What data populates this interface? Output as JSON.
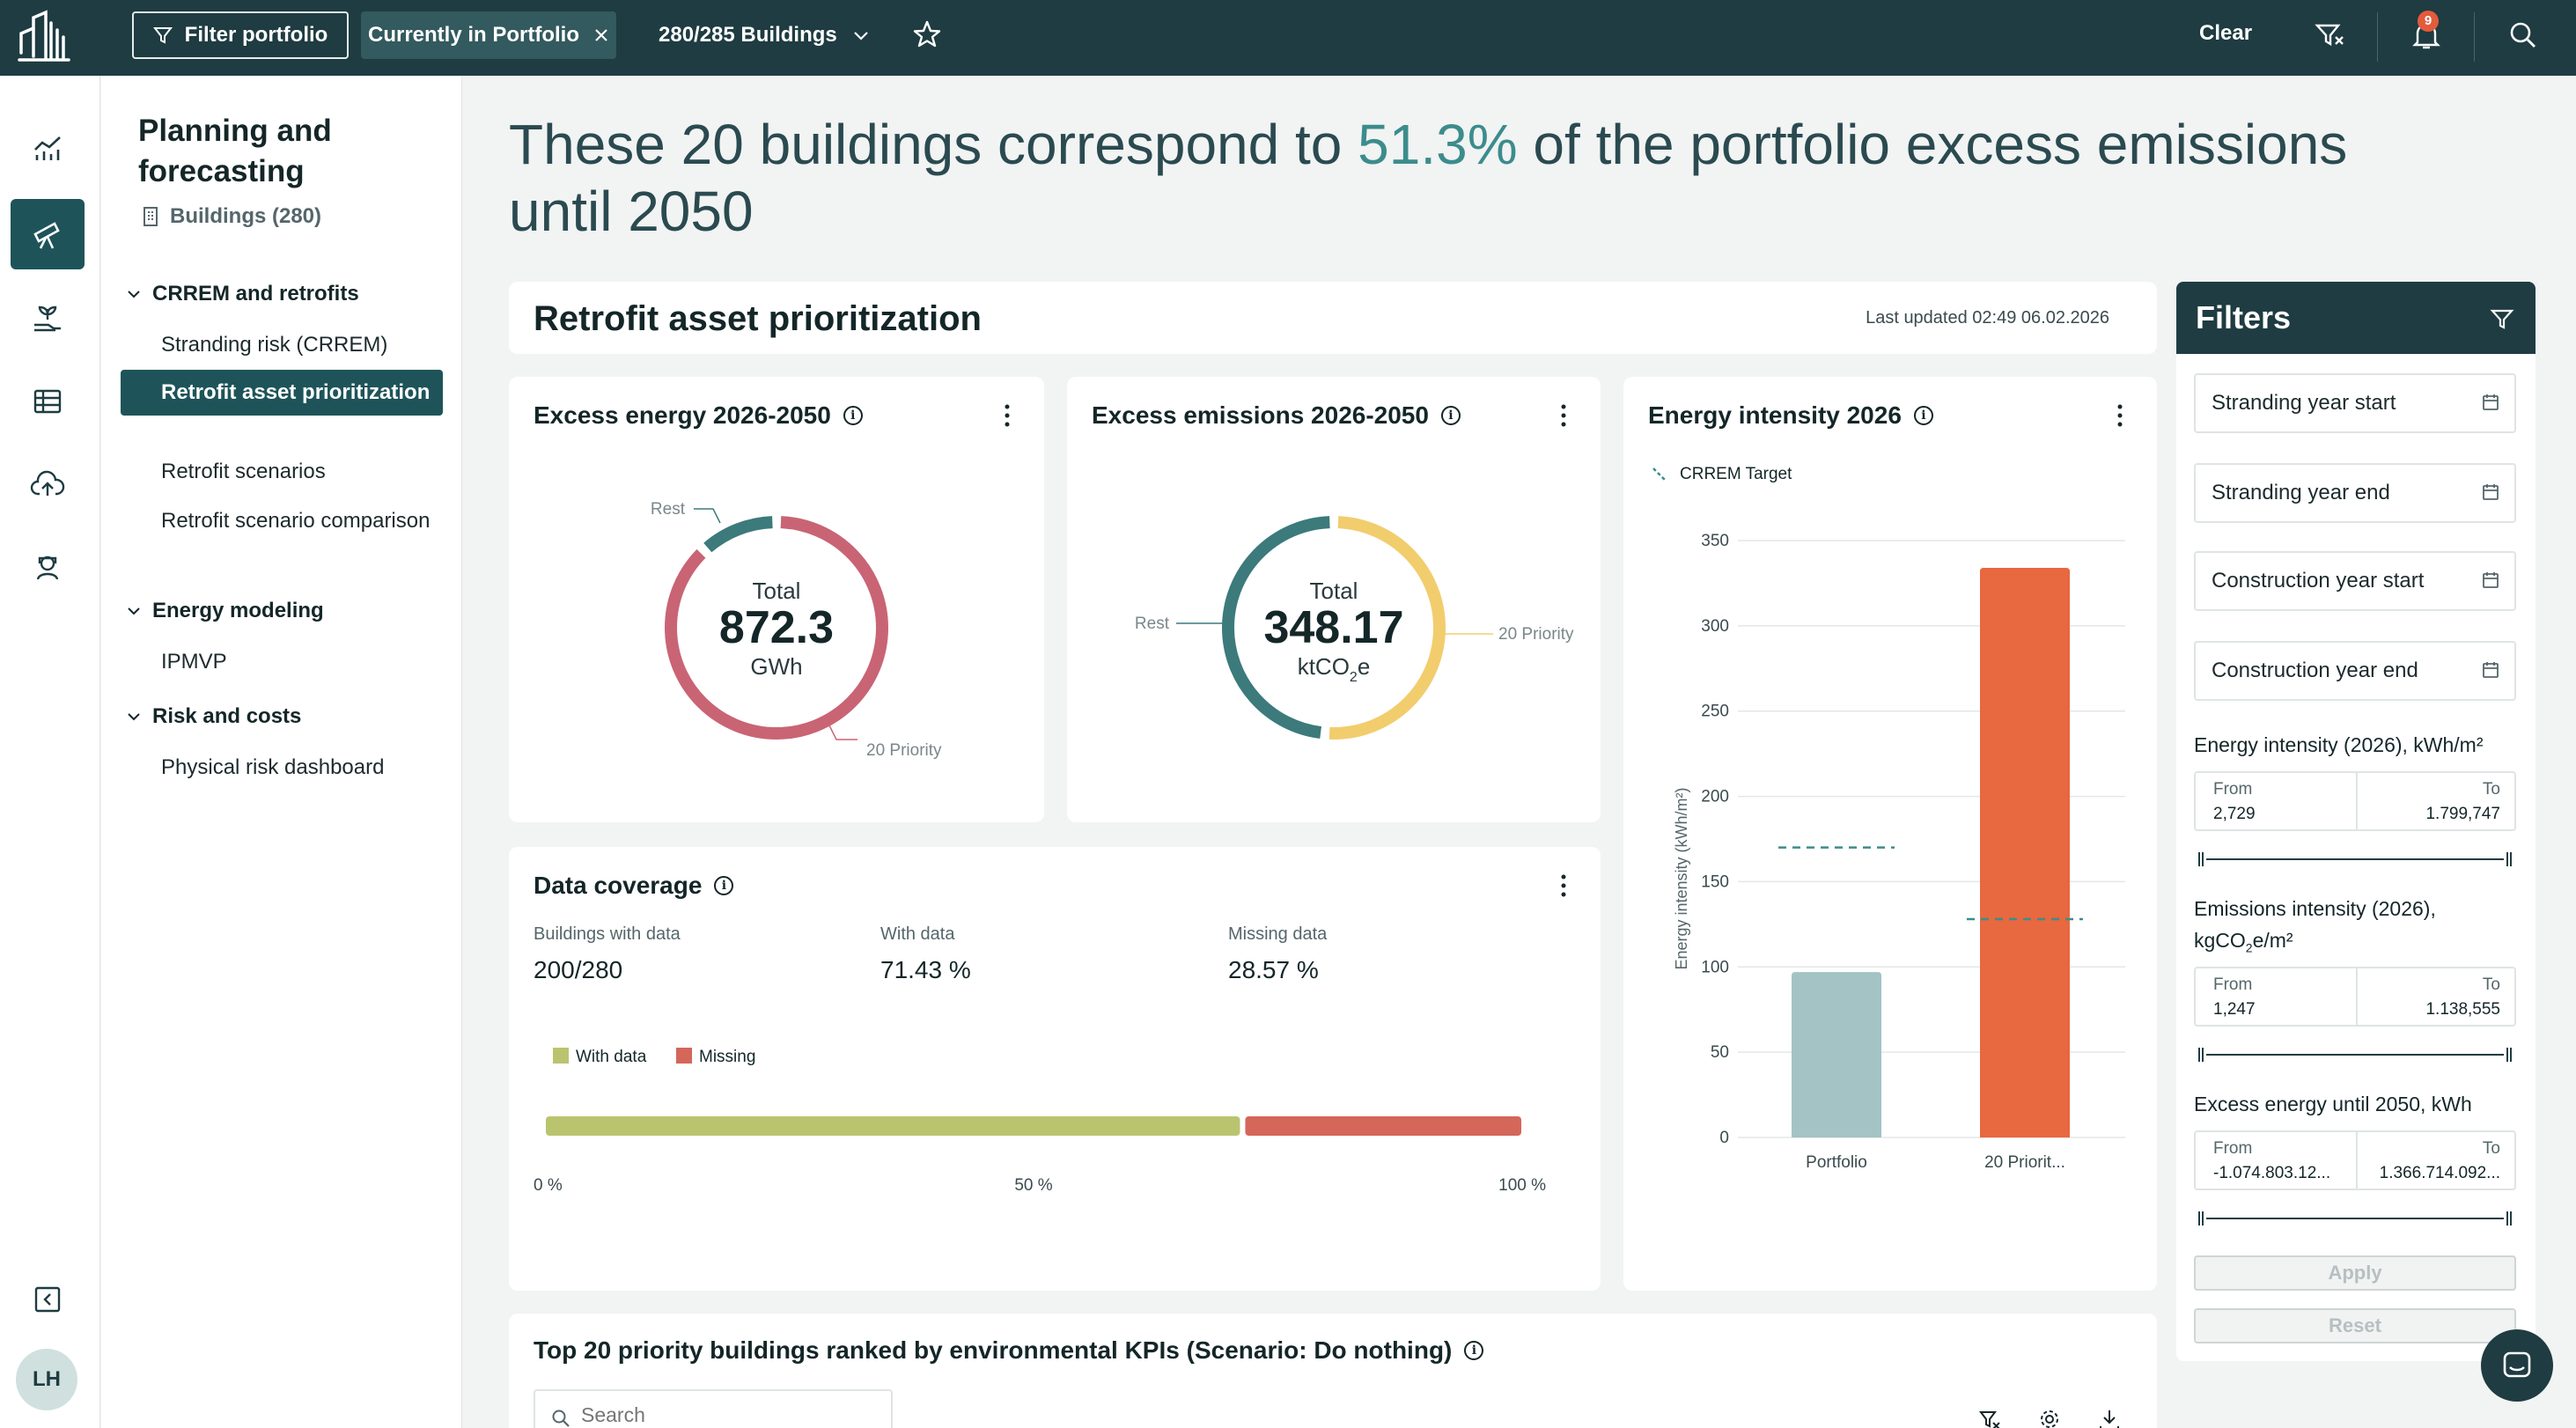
{
  "topbar": {
    "filter_label": "Filter portfolio",
    "chip_label": "Currently in Portfolio",
    "buildings_label": "280/285 Buildings",
    "clear_label": "Clear",
    "notification_count": "9"
  },
  "rail": {
    "avatar_initials": "LH"
  },
  "subnav": {
    "title": "Planning and forecasting",
    "buildings": "Buildings (280)",
    "groups": [
      {
        "label": "CRREM and retrofits"
      },
      {
        "label": "Energy modeling"
      },
      {
        "label": "Risk and costs"
      }
    ],
    "items": [
      {
        "label": "Stranding risk (CRREM)"
      },
      {
        "label": "Retrofit asset prioritization"
      },
      {
        "label": "Retrofit scenarios"
      },
      {
        "label": "Retrofit scenario comparison"
      },
      {
        "label": "IPMVP"
      },
      {
        "label": "Physical risk dashboard"
      }
    ]
  },
  "headline": {
    "before": "These 20 buildings correspond to ",
    "accent": "51.3%",
    "after": " of the portfolio excess emissions until 2050"
  },
  "prioritization": {
    "title": "Retrofit asset prioritization",
    "last_updated": "Last updated 02:49 06.02.2026"
  },
  "excess_energy": {
    "title": "Excess energy 2026-2050",
    "total_label": "Total",
    "total_value": "872.3",
    "unit": "GWh",
    "rest_label": "Rest",
    "priority_label": "20 Priority",
    "priority_share": 0.88,
    "colors": {
      "priority": "#c96474",
      "rest": "#3c7a7c"
    }
  },
  "excess_emissions": {
    "title": "Excess emissions 2026-2050",
    "total_label": "Total",
    "total_value": "348.17",
    "unit_main": "ktCO",
    "unit_sub": "2",
    "unit_tail": "e",
    "rest_label": "Rest",
    "priority_label": "20 Priority",
    "priority_share": 0.513,
    "colors": {
      "priority": "#f2cd6e",
      "rest": "#3c7a7c"
    }
  },
  "energy_intensity": {
    "title": "Energy intensity 2026",
    "legend_label": "CRREM Target"
  },
  "chart_data": {
    "type": "bar",
    "title": "Energy intensity 2026",
    "categories": [
      "Portfolio",
      "20 Priorit..."
    ],
    "values": [
      97,
      334
    ],
    "targets": [
      170,
      128
    ],
    "ylabel": "Energy intensity (kWh/m²)",
    "ylim": [
      0,
      350
    ],
    "yticks": [
      0,
      50,
      100,
      150,
      200,
      250,
      300,
      350
    ],
    "colors": [
      "#a3c3c4",
      "#e8683f"
    ],
    "target_color": "#3c8c8c",
    "legend": [
      "CRREM Target"
    ]
  },
  "data_coverage": {
    "title": "Data coverage",
    "stats": [
      {
        "label": "Buildings with data",
        "value": "200/280"
      },
      {
        "label": "With data",
        "value": "71.43 %"
      },
      {
        "label": "Missing data",
        "value": "28.57 %"
      }
    ],
    "legend_with": "With data",
    "legend_missing": "Missing",
    "with_share": 0.7143,
    "axis": [
      "0 %",
      "50 %",
      "100 %"
    ],
    "colors": {
      "with": "#bac46f",
      "missing": "#d4665a"
    }
  },
  "top20": {
    "title": "Top 20 priority buildings ranked by environmental KPIs (Scenario: Do nothing)",
    "search_placeholder": "Search"
  },
  "filters": {
    "title": "Filters",
    "stranding_start": "Stranding year start",
    "stranding_end": "Stranding year end",
    "construction_start": "Construction year start",
    "construction_end": "Construction year end",
    "energy_intensity_label": "Energy intensity (2026), kWh/m²",
    "energy_from_cap": "From",
    "energy_to_cap": "To",
    "energy_from": "2,729",
    "energy_to": "1.799,747",
    "emissions_label_a": "Emissions intensity (2026),",
    "emissions_label_b": "kgCO",
    "emissions_label_sub": "2",
    "emissions_label_c": "e/m²",
    "emissions_from_cap": "From",
    "emissions_to_cap": "To",
    "emissions_from": "1,247",
    "emissions_to": "1.138,555",
    "excess_label": "Excess energy until 2050, kWh",
    "excess_from_cap": "From",
    "excess_to_cap": "To",
    "excess_from": "-1.074.803.12...",
    "excess_to": "1.366.714.092...",
    "apply": "Apply",
    "reset": "Reset"
  }
}
